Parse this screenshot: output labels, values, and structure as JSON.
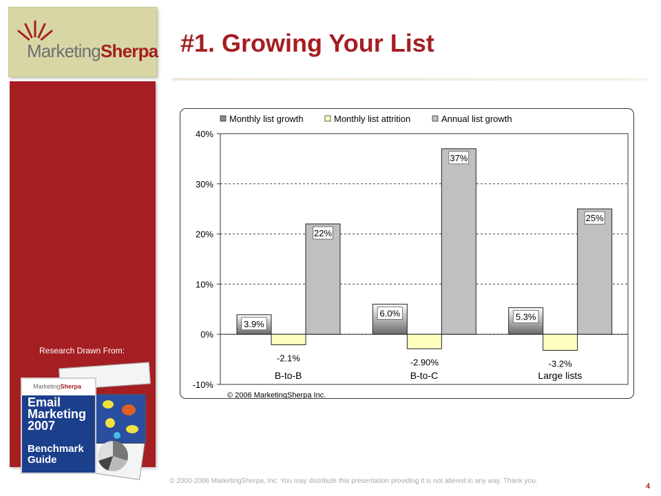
{
  "brand": {
    "name_part1": "Marketing",
    "name_part2": "Sherpa"
  },
  "sidebar": {
    "research_label": "Research Drawn From:",
    "guide": {
      "brand_part1": "Marketing",
      "brand_part2": "Sherpa",
      "title_lines": [
        "Email",
        "Marketing",
        "2007"
      ],
      "subtitle_lines": [
        "Benchmark",
        "Guide"
      ]
    }
  },
  "slide": {
    "title": "#1. Growing Your List",
    "footer": "© 2000-2006 MarketingSherpa, Inc. You may distribute this presentation providing it is not altered in any way. Thank you.",
    "page_number": "4"
  },
  "colors": {
    "accent_red": "#a51e22",
    "logo_bg": "#d8d6a5",
    "series_monthly_growth": "#8a8a8a",
    "series_monthly_attrition": "#ffffc0",
    "series_annual_growth": "#c0c0c0"
  },
  "chart_data": {
    "type": "bar",
    "categories": [
      "B-to-B",
      "B-to-C",
      "Large lists"
    ],
    "series": [
      {
        "name": "Monthly list growth",
        "values": [
          3.9,
          6.0,
          5.3
        ],
        "labels": [
          "3.9%",
          "6.0%",
          "5.3%"
        ]
      },
      {
        "name": "Monthly list attrition",
        "values": [
          -2.1,
          -2.9,
          -3.2
        ],
        "labels": [
          "-2.1%",
          "-2.90%",
          "-3.2%"
        ]
      },
      {
        "name": "Annual list growth",
        "values": [
          22,
          37,
          25
        ],
        "labels": [
          "22%",
          "37%",
          "25%"
        ]
      }
    ],
    "ylim": [
      -10,
      40
    ],
    "yticks": [
      40,
      30,
      20,
      10,
      0,
      -10
    ],
    "ytick_labels": [
      "40%",
      "30%",
      "20%",
      "10%",
      "0%",
      "-10%"
    ],
    "grid": true,
    "legend_position": "top",
    "source_note": "© 2006 MarketingSherpa Inc."
  }
}
